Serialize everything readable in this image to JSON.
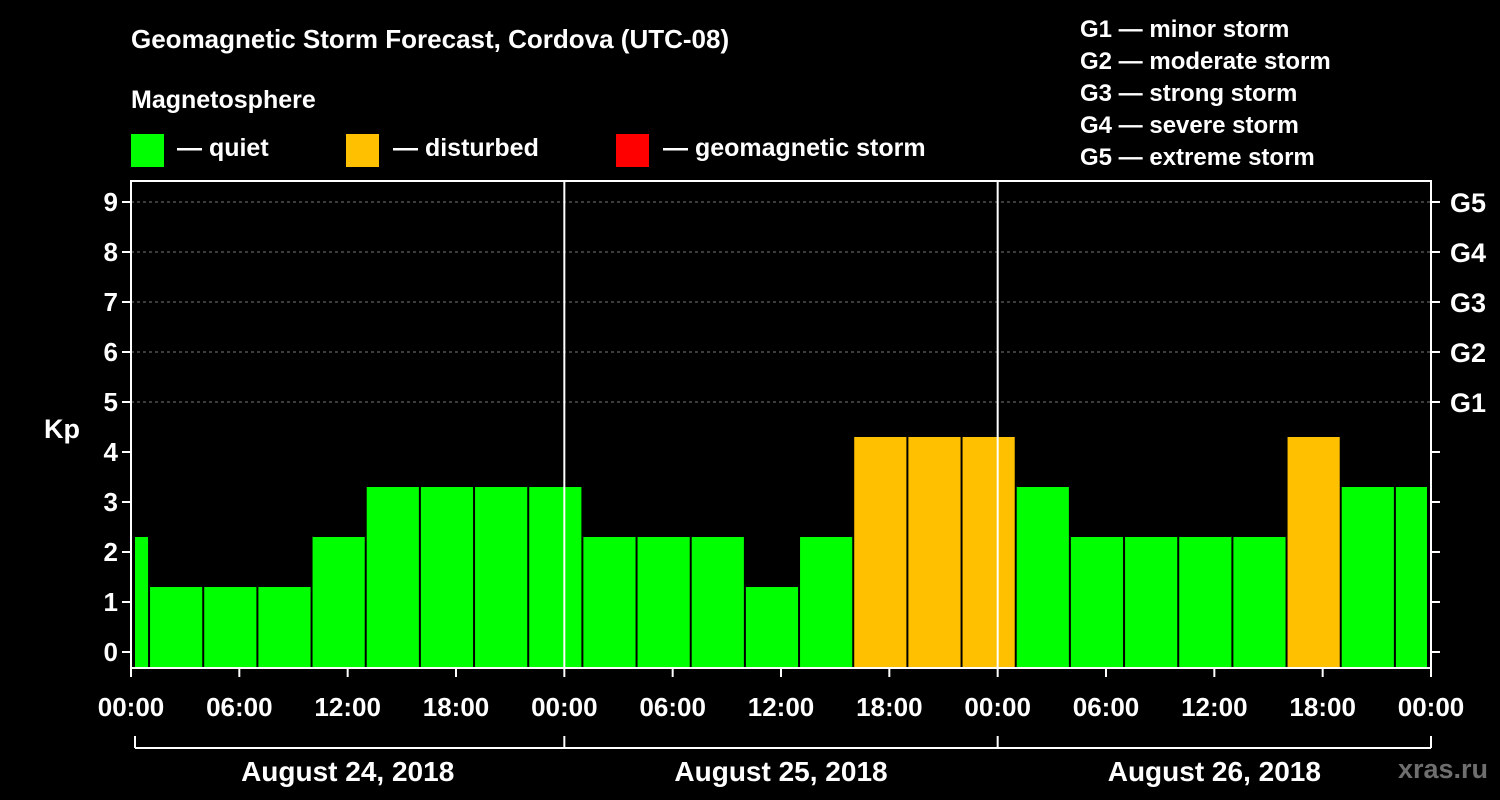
{
  "title": "Geomagnetic Storm Forecast, Cordova (UTC-08)",
  "subtitle": "Magnetosphere",
  "legend": [
    {
      "label": "— quiet",
      "color": "#00ff00"
    },
    {
      "label": "— disturbed",
      "color": "#ffc000"
    },
    {
      "label": "— geomagnetic storm",
      "color": "#ff0000"
    }
  ],
  "storm_scale": [
    "G1 — minor storm",
    "G2 — moderate storm",
    "G3 — strong storm",
    "G4 — severe storm",
    "G5 — extreme storm"
  ],
  "watermark": "xras.ru",
  "chart_data": {
    "type": "bar",
    "title": "Geomagnetic Storm Forecast, Cordova (UTC-08)",
    "ylabel": "Kp",
    "ylim": [
      0,
      9
    ],
    "yticks": [
      0,
      1,
      2,
      3,
      4,
      5,
      6,
      7,
      8,
      9
    ],
    "right_axis_labels": [
      {
        "kp": 5,
        "label": "G1"
      },
      {
        "kp": 6,
        "label": "G2"
      },
      {
        "kp": 7,
        "label": "G3"
      },
      {
        "kp": 8,
        "label": "G4"
      },
      {
        "kp": 9,
        "label": "G5"
      }
    ],
    "x_hours_range": [
      0,
      72
    ],
    "xticks": [
      {
        "hour": 0,
        "label": "00:00"
      },
      {
        "hour": 6,
        "label": "06:00"
      },
      {
        "hour": 12,
        "label": "12:00"
      },
      {
        "hour": 18,
        "label": "18:00"
      },
      {
        "hour": 24,
        "label": "00:00"
      },
      {
        "hour": 30,
        "label": "06:00"
      },
      {
        "hour": 36,
        "label": "12:00"
      },
      {
        "hour": 42,
        "label": "18:00"
      },
      {
        "hour": 48,
        "label": "00:00"
      },
      {
        "hour": 54,
        "label": "06:00"
      },
      {
        "hour": 60,
        "label": "12:00"
      },
      {
        "hour": 66,
        "label": "18:00"
      },
      {
        "hour": 72,
        "label": "00:00"
      }
    ],
    "days": [
      {
        "label": "August 24, 2018",
        "start": 0,
        "end": 24
      },
      {
        "label": "August 25, 2018",
        "start": 24,
        "end": 48
      },
      {
        "label": "August 26, 2018",
        "start": 48,
        "end": 72
      }
    ],
    "day_separators": [
      24,
      48
    ],
    "thresholds": {
      "disturbed": 4,
      "storm": 5
    },
    "bars": [
      {
        "start": 0,
        "end": 1,
        "kp": 2
      },
      {
        "start": 1,
        "end": 4,
        "kp": 1
      },
      {
        "start": 4,
        "end": 7,
        "kp": 1
      },
      {
        "start": 7,
        "end": 10,
        "kp": 1
      },
      {
        "start": 10,
        "end": 13,
        "kp": 2
      },
      {
        "start": 13,
        "end": 16,
        "kp": 3
      },
      {
        "start": 16,
        "end": 19,
        "kp": 3
      },
      {
        "start": 19,
        "end": 22,
        "kp": 3
      },
      {
        "start": 22,
        "end": 25,
        "kp": 3
      },
      {
        "start": 25,
        "end": 28,
        "kp": 2
      },
      {
        "start": 28,
        "end": 31,
        "kp": 2
      },
      {
        "start": 31,
        "end": 34,
        "kp": 2
      },
      {
        "start": 34,
        "end": 37,
        "kp": 1
      },
      {
        "start": 37,
        "end": 40,
        "kp": 2
      },
      {
        "start": 40,
        "end": 43,
        "kp": 4
      },
      {
        "start": 43,
        "end": 46,
        "kp": 4
      },
      {
        "start": 46,
        "end": 49,
        "kp": 4
      },
      {
        "start": 49,
        "end": 52,
        "kp": 3
      },
      {
        "start": 52,
        "end": 55,
        "kp": 2
      },
      {
        "start": 55,
        "end": 58,
        "kp": 2
      },
      {
        "start": 58,
        "end": 61,
        "kp": 2
      },
      {
        "start": 61,
        "end": 64,
        "kp": 2
      },
      {
        "start": 64,
        "end": 67,
        "kp": 4
      },
      {
        "start": 67,
        "end": 70,
        "kp": 3
      },
      {
        "start": 70,
        "end": 72,
        "kp": 3
      }
    ]
  }
}
